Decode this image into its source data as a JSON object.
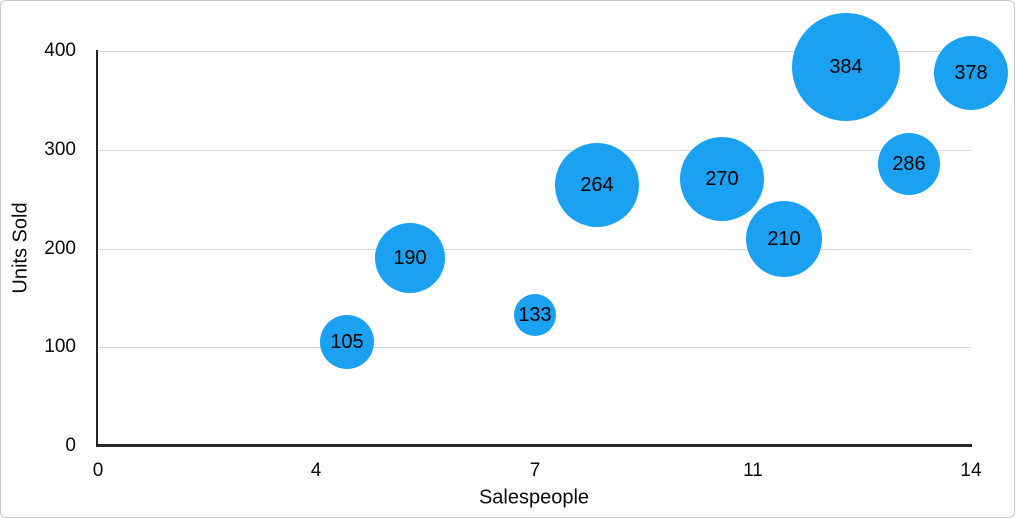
{
  "figure": {
    "background": "#ffffff",
    "border_color": "#c7c7c7"
  },
  "chart_data": {
    "type": "scatter",
    "subtype": "bubble",
    "title": "",
    "xlabel": "Salespeople",
    "ylabel": "Units Sold",
    "xlim": [
      0,
      14
    ],
    "ylim": [
      0,
      400
    ],
    "x_tick_labels": [
      "0",
      "4",
      "7",
      "11",
      "14"
    ],
    "x_ticks_evenly_spaced": true,
    "y_tick_values": [
      0,
      100,
      200,
      300,
      400
    ],
    "y_tick_labels": [
      "0",
      "100",
      "200",
      "300",
      "400"
    ],
    "grid": "horizontal",
    "legend": "none",
    "points": [
      {
        "x": 4,
        "y": 105,
        "label": "105",
        "radius_px": 27
      },
      {
        "x": 5,
        "y": 190,
        "label": "190",
        "radius_px": 35
      },
      {
        "x": 7,
        "y": 133,
        "label": "133",
        "radius_px": 21
      },
      {
        "x": 8,
        "y": 264,
        "label": "264",
        "radius_px": 42
      },
      {
        "x": 10,
        "y": 270,
        "label": "270",
        "radius_px": 42
      },
      {
        "x": 11,
        "y": 210,
        "label": "210",
        "radius_px": 38
      },
      {
        "x": 12,
        "y": 384,
        "label": "384",
        "radius_px": 54
      },
      {
        "x": 13,
        "y": 286,
        "label": "286",
        "radius_px": 31
      },
      {
        "x": 14,
        "y": 378,
        "label": "378",
        "radius_px": 37
      }
    ],
    "colors": {
      "bubble": "#1aa1f2",
      "bubble_label": "#000000",
      "gridline": "#d8d8d8",
      "axis": "#262626",
      "tick_label": "#0a0a0a"
    }
  }
}
